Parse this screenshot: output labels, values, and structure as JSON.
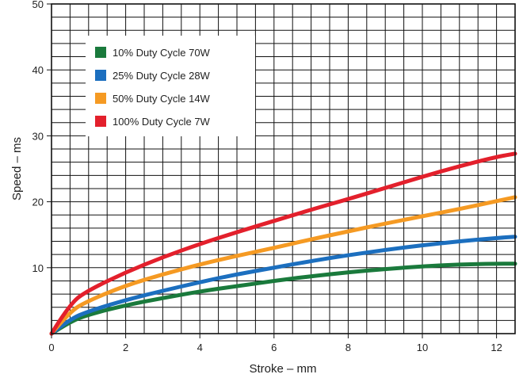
{
  "chart_data": {
    "type": "line",
    "xlabel": "Stroke – mm",
    "ylabel": "Speed – ms",
    "xlim": [
      0,
      12.5
    ],
    "ylim": [
      0,
      50
    ],
    "x_ticks": [
      0,
      2,
      4,
      6,
      8,
      10,
      12
    ],
    "x_tick_labels": [
      "0",
      "2",
      "4",
      "6",
      "8",
      "10",
      "12"
    ],
    "y_ticks": [
      10,
      20,
      30,
      40,
      50
    ],
    "y_tick_labels": [
      "10",
      "20",
      "30",
      "40",
      "50"
    ],
    "grid": true,
    "legend_position": "top-left",
    "series": [
      {
        "name": "10% Duty Cycle 70W",
        "color": "#1a7a3c",
        "x": [
          0,
          0.5,
          1,
          2,
          3,
          4,
          5,
          6,
          7,
          8,
          9,
          10,
          11,
          12,
          12.5
        ],
        "y": [
          0,
          1.8,
          2.9,
          4.3,
          5.4,
          6.4,
          7.2,
          8.0,
          8.7,
          9.3,
          9.8,
          10.2,
          10.5,
          10.6,
          10.6
        ]
      },
      {
        "name": "25% Duty Cycle 28W",
        "color": "#1c6fbf",
        "x": [
          0,
          0.5,
          1,
          2,
          3,
          4,
          5,
          6,
          7,
          8,
          9,
          10,
          11,
          12,
          12.5
        ],
        "y": [
          0,
          2.2,
          3.4,
          5.1,
          6.5,
          7.8,
          9.0,
          10.0,
          11.0,
          11.9,
          12.7,
          13.4,
          14.0,
          14.5,
          14.7
        ]
      },
      {
        "name": "50% Duty Cycle 14W",
        "color": "#f59a23",
        "x": [
          0,
          0.5,
          1,
          2,
          3,
          4,
          5,
          6,
          7,
          8,
          9,
          10,
          11,
          12,
          12.5
        ],
        "y": [
          0,
          3.4,
          5.0,
          7.3,
          9.0,
          10.5,
          11.8,
          13.0,
          14.3,
          15.5,
          16.7,
          17.8,
          18.9,
          20.1,
          20.7
        ]
      },
      {
        "name": "100% Duty Cycle 7W",
        "color": "#e3202c",
        "x": [
          0,
          0.5,
          1,
          2,
          3,
          4,
          5,
          6,
          7,
          8,
          9,
          10,
          11,
          12,
          12.5
        ],
        "y": [
          0,
          4.6,
          6.6,
          9.3,
          11.6,
          13.6,
          15.4,
          17.1,
          18.8,
          20.4,
          22.1,
          23.8,
          25.4,
          26.8,
          27.3
        ]
      }
    ]
  }
}
